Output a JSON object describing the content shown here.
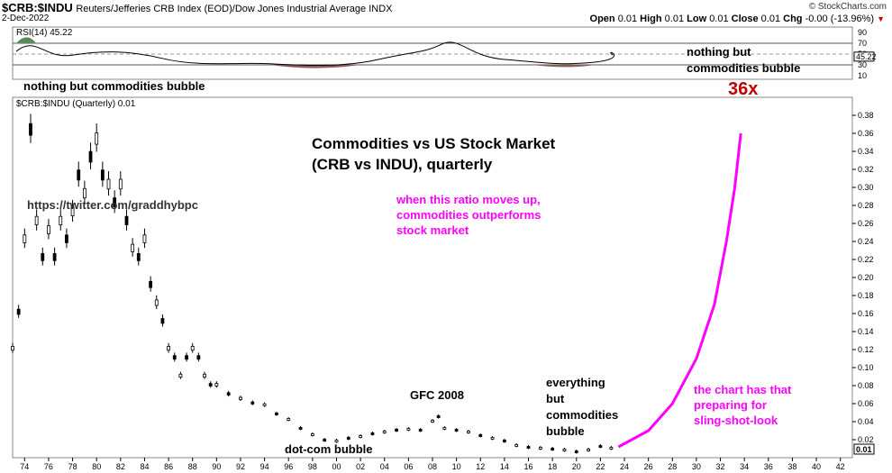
{
  "header": {
    "symbol": "$CRB:$INDU",
    "subtitle": "Reuters/Jefferies CRB Index (EOD)/Dow Jones Industrial Average  INDX",
    "brand": "© StockCharts.com",
    "date": "2-Dec-2022",
    "ohlc": [
      {
        "key": "Open",
        "value": "0.01"
      },
      {
        "key": "High",
        "value": "0.01"
      },
      {
        "key": "Low",
        "value": "0.01"
      },
      {
        "key": "Close",
        "value": "0.01"
      },
      {
        "key": "Chg",
        "value": "-0.00 (-13.96%)"
      }
    ]
  },
  "rsi_panel": {
    "legend": "RSI(14) 45.22",
    "current_label": "45.22",
    "ticks": [
      "90",
      "70",
      "50",
      "30",
      "10"
    ],
    "annotation": "nothing but commodities bubble"
  },
  "price_panel": {
    "legend": "$CRB:$INDU (Quarterly) 0.01",
    "current_label": "0.01",
    "y_ticks": [
      "0.38",
      "0.36",
      "0.34",
      "0.32",
      "0.30",
      "0.28",
      "0.26",
      "0.24",
      "0.22",
      "0.20",
      "0.18",
      "0.16",
      "0.14",
      "0.12",
      "0.10",
      "0.08",
      "0.06",
      "0.04",
      "0.02"
    ],
    "x_ticks": [
      "74",
      "76",
      "78",
      "80",
      "82",
      "84",
      "86",
      "88",
      "90",
      "92",
      "94",
      "96",
      "98",
      "00",
      "02",
      "04",
      "06",
      "08",
      "10",
      "12",
      "14",
      "16",
      "18",
      "20",
      "22",
      "24",
      "26",
      "28",
      "30",
      "32",
      "34",
      "36",
      "38",
      "40",
      "42"
    ],
    "annotations": {
      "title_line1": "Commodities vs US Stock Market",
      "title_line2": "(CRB vs INDU), quarterly",
      "twitter": "https://twitter.com/graddhybpc",
      "ratio_note": [
        "when this ratio moves up,",
        "commodities outperforms",
        "stock market"
      ],
      "gfc": "GFC 2008",
      "dotcom": "dot-com bubble",
      "everything": [
        "everything",
        "but",
        "commodities",
        "bubble"
      ],
      "nothing_right": [
        "nothing but",
        "commodities bubble"
      ],
      "multiple": "36x",
      "slingshot": [
        "the chart has that",
        "preparing for",
        "sling-shot-look"
      ]
    },
    "colors": {
      "magenta": "#ff00ff",
      "red": "#c00000",
      "rsi_above": "#5a8a5a",
      "rsi_below": "#8b5a5a"
    }
  },
  "chart_data": {
    "type": "line",
    "title": "Commodities vs US Stock Market (CRB vs INDU), quarterly",
    "ylim": [
      0,
      0.39
    ],
    "xlim": [
      1973,
      2043
    ],
    "series": [
      {
        "name": "$CRB:$INDU (Quarterly)",
        "x": [
          1973.0,
          1973.5,
          1974.0,
          1974.5,
          1975.0,
          1975.5,
          1976.0,
          1976.5,
          1977.0,
          1977.5,
          1978.0,
          1978.5,
          1979.0,
          1979.5,
          1980.0,
          1980.5,
          1981.0,
          1981.5,
          1982.0,
          1982.5,
          1983.0,
          1983.5,
          1984.0,
          1984.5,
          1985.0,
          1985.5,
          1986.0,
          1986.5,
          1987.0,
          1987.5,
          1988.0,
          1988.5,
          1989.0,
          1989.5,
          1990.0,
          1991.0,
          1992.0,
          1993.0,
          1994.0,
          1995.0,
          1996.0,
          1997.0,
          1998.0,
          1999.0,
          2000.0,
          2001.0,
          2002.0,
          2003.0,
          2004.0,
          2005.0,
          2006.0,
          2007.0,
          2008.0,
          2008.5,
          2009.0,
          2010.0,
          2011.0,
          2012.0,
          2013.0,
          2014.0,
          2015.0,
          2016.0,
          2017.0,
          2018.0,
          2019.0,
          2020.0,
          2021.0,
          2022.0,
          2022.9
        ],
        "y": [
          0.12,
          0.16,
          0.24,
          0.36,
          0.26,
          0.22,
          0.25,
          0.22,
          0.26,
          0.24,
          0.27,
          0.31,
          0.29,
          0.33,
          0.35,
          0.31,
          0.3,
          0.28,
          0.3,
          0.26,
          0.23,
          0.22,
          0.24,
          0.19,
          0.17,
          0.15,
          0.12,
          0.11,
          0.09,
          0.11,
          0.12,
          0.11,
          0.09,
          0.08,
          0.08,
          0.07,
          0.065,
          0.06,
          0.058,
          0.048,
          0.042,
          0.032,
          0.025,
          0.019,
          0.018,
          0.021,
          0.023,
          0.026,
          0.028,
          0.03,
          0.031,
          0.03,
          0.04,
          0.045,
          0.032,
          0.03,
          0.028,
          0.024,
          0.021,
          0.018,
          0.013,
          0.011,
          0.01,
          0.009,
          0.008,
          0.006,
          0.008,
          0.012,
          0.01
        ]
      },
      {
        "name": "Projection",
        "x": [
          2023.5,
          2026,
          2028,
          2030,
          2031.5,
          2032.5,
          2033.2,
          2033.7
        ],
        "y": [
          0.012,
          0.03,
          0.06,
          0.11,
          0.17,
          0.24,
          0.3,
          0.36
        ]
      }
    ]
  }
}
